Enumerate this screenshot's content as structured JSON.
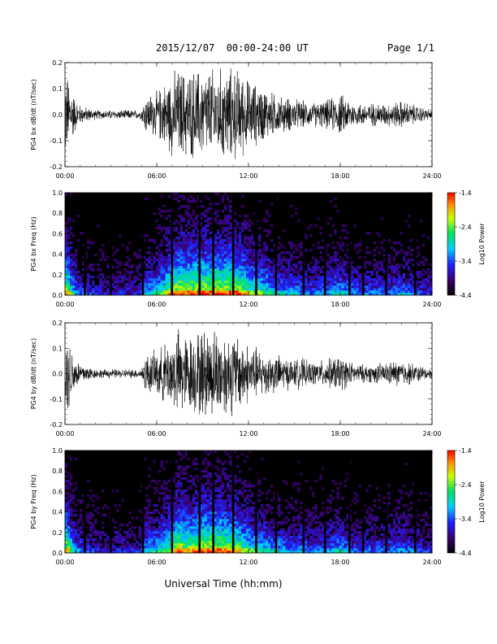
{
  "header": {
    "title": "2015/12/07  00:00-24:00 UT",
    "page": "Page 1/1"
  },
  "footer": {
    "xlabel": "Universal Time (hh:mm)"
  },
  "chart_data": [
    {
      "type": "line",
      "ylabel": "PG4 bx dB/dt (nT/sec)",
      "ylim": [
        -0.2,
        0.2
      ],
      "yticks": [
        "0.2",
        "0.1",
        "0.0",
        "-0.1",
        "-0.2"
      ],
      "x_range_hours": [
        0,
        24
      ],
      "xticks": [
        "00:00",
        "06:00",
        "12:00",
        "18:00",
        "24:00"
      ],
      "amplitude_profile": {
        "hours": [
          0,
          0.3,
          0.7,
          1,
          2,
          3,
          4,
          5,
          5.2,
          6,
          7,
          7.5,
          8,
          9,
          9.5,
          10,
          11,
          11.3,
          12,
          13,
          14,
          15,
          15.5,
          16,
          17,
          18,
          19,
          20,
          21,
          22,
          23,
          24
        ],
        "peak_abs": [
          0.2,
          0.15,
          0.07,
          0.04,
          0.02,
          0.02,
          0.02,
          0.02,
          0.08,
          0.1,
          0.18,
          0.2,
          0.19,
          0.2,
          0.2,
          0.2,
          0.2,
          0.2,
          0.15,
          0.12,
          0.08,
          0.07,
          0.06,
          0.05,
          0.06,
          0.09,
          0.05,
          0.05,
          0.05,
          0.06,
          0.04,
          0.02
        ]
      }
    },
    {
      "type": "heatmap",
      "ylabel": "PG4 bx Freq (Hz)",
      "ylim": [
        0,
        1
      ],
      "yticks": [
        "1.0",
        "0.8",
        "0.6",
        "0.4",
        "0.2",
        "0.0"
      ],
      "x_range_hours": [
        0,
        24
      ],
      "xticks": [
        "00:00",
        "06:00",
        "12:00",
        "18:00",
        "24:00"
      ],
      "colorbar": {
        "label": "Log10 Power",
        "range": [
          -4.4,
          -1.4
        ],
        "ticks": [
          "-1.4",
          "-2.4",
          "-3.4",
          "-4.4"
        ]
      },
      "data_gaps_hours": [
        1.3,
        3.0,
        5.1,
        7.0,
        8.8,
        9.7,
        11.0,
        12.5,
        13.8,
        15.6,
        17.0,
        18.6,
        19.5,
        21.0,
        22.9
      ]
    },
    {
      "type": "line",
      "ylabel": "PG4 by dB/dt (nT/sec)",
      "ylim": [
        -0.2,
        0.2
      ],
      "yticks": [
        "0.2",
        "0.1",
        "0.0",
        "-0.1",
        "-0.2"
      ],
      "x_range_hours": [
        0,
        24
      ],
      "xticks": [
        "00:00",
        "06:00",
        "12:00",
        "18:00",
        "24:00"
      ],
      "amplitude_profile": {
        "hours": [
          0,
          0.3,
          0.7,
          1,
          2,
          3,
          4,
          5,
          5.2,
          6,
          7,
          7.5,
          8,
          9,
          9.5,
          10,
          11,
          11.3,
          12,
          13,
          14,
          15,
          15.5,
          16,
          17,
          18,
          19,
          20,
          21,
          22,
          23,
          24
        ],
        "peak_abs": [
          0.2,
          0.15,
          0.07,
          0.05,
          0.02,
          0.02,
          0.02,
          0.02,
          0.08,
          0.1,
          0.16,
          0.2,
          0.17,
          0.2,
          0.2,
          0.2,
          0.18,
          0.17,
          0.13,
          0.1,
          0.08,
          0.06,
          0.07,
          0.05,
          0.06,
          0.08,
          0.04,
          0.04,
          0.05,
          0.06,
          0.04,
          0.02
        ]
      }
    },
    {
      "type": "heatmap",
      "ylabel": "PG4 by Freq (Hz)",
      "ylim": [
        0,
        1
      ],
      "yticks": [
        "1.0",
        "0.8",
        "0.6",
        "0.4",
        "0.2",
        "0.0"
      ],
      "x_range_hours": [
        0,
        24
      ],
      "xticks": [
        "00:00",
        "06:00",
        "12:00",
        "18:00",
        "24:00"
      ],
      "colorbar": {
        "label": "Log10 Power",
        "range": [
          -4.4,
          -1.4
        ],
        "ticks": [
          "-1.4",
          "-2.4",
          "-3.4",
          "-4.4"
        ]
      },
      "data_gaps_hours": [
        1.3,
        3.0,
        5.1,
        7.0,
        8.8,
        9.7,
        11.0,
        12.5,
        13.8,
        15.6,
        17.0,
        18.6,
        19.5,
        21.0,
        22.9
      ]
    }
  ]
}
